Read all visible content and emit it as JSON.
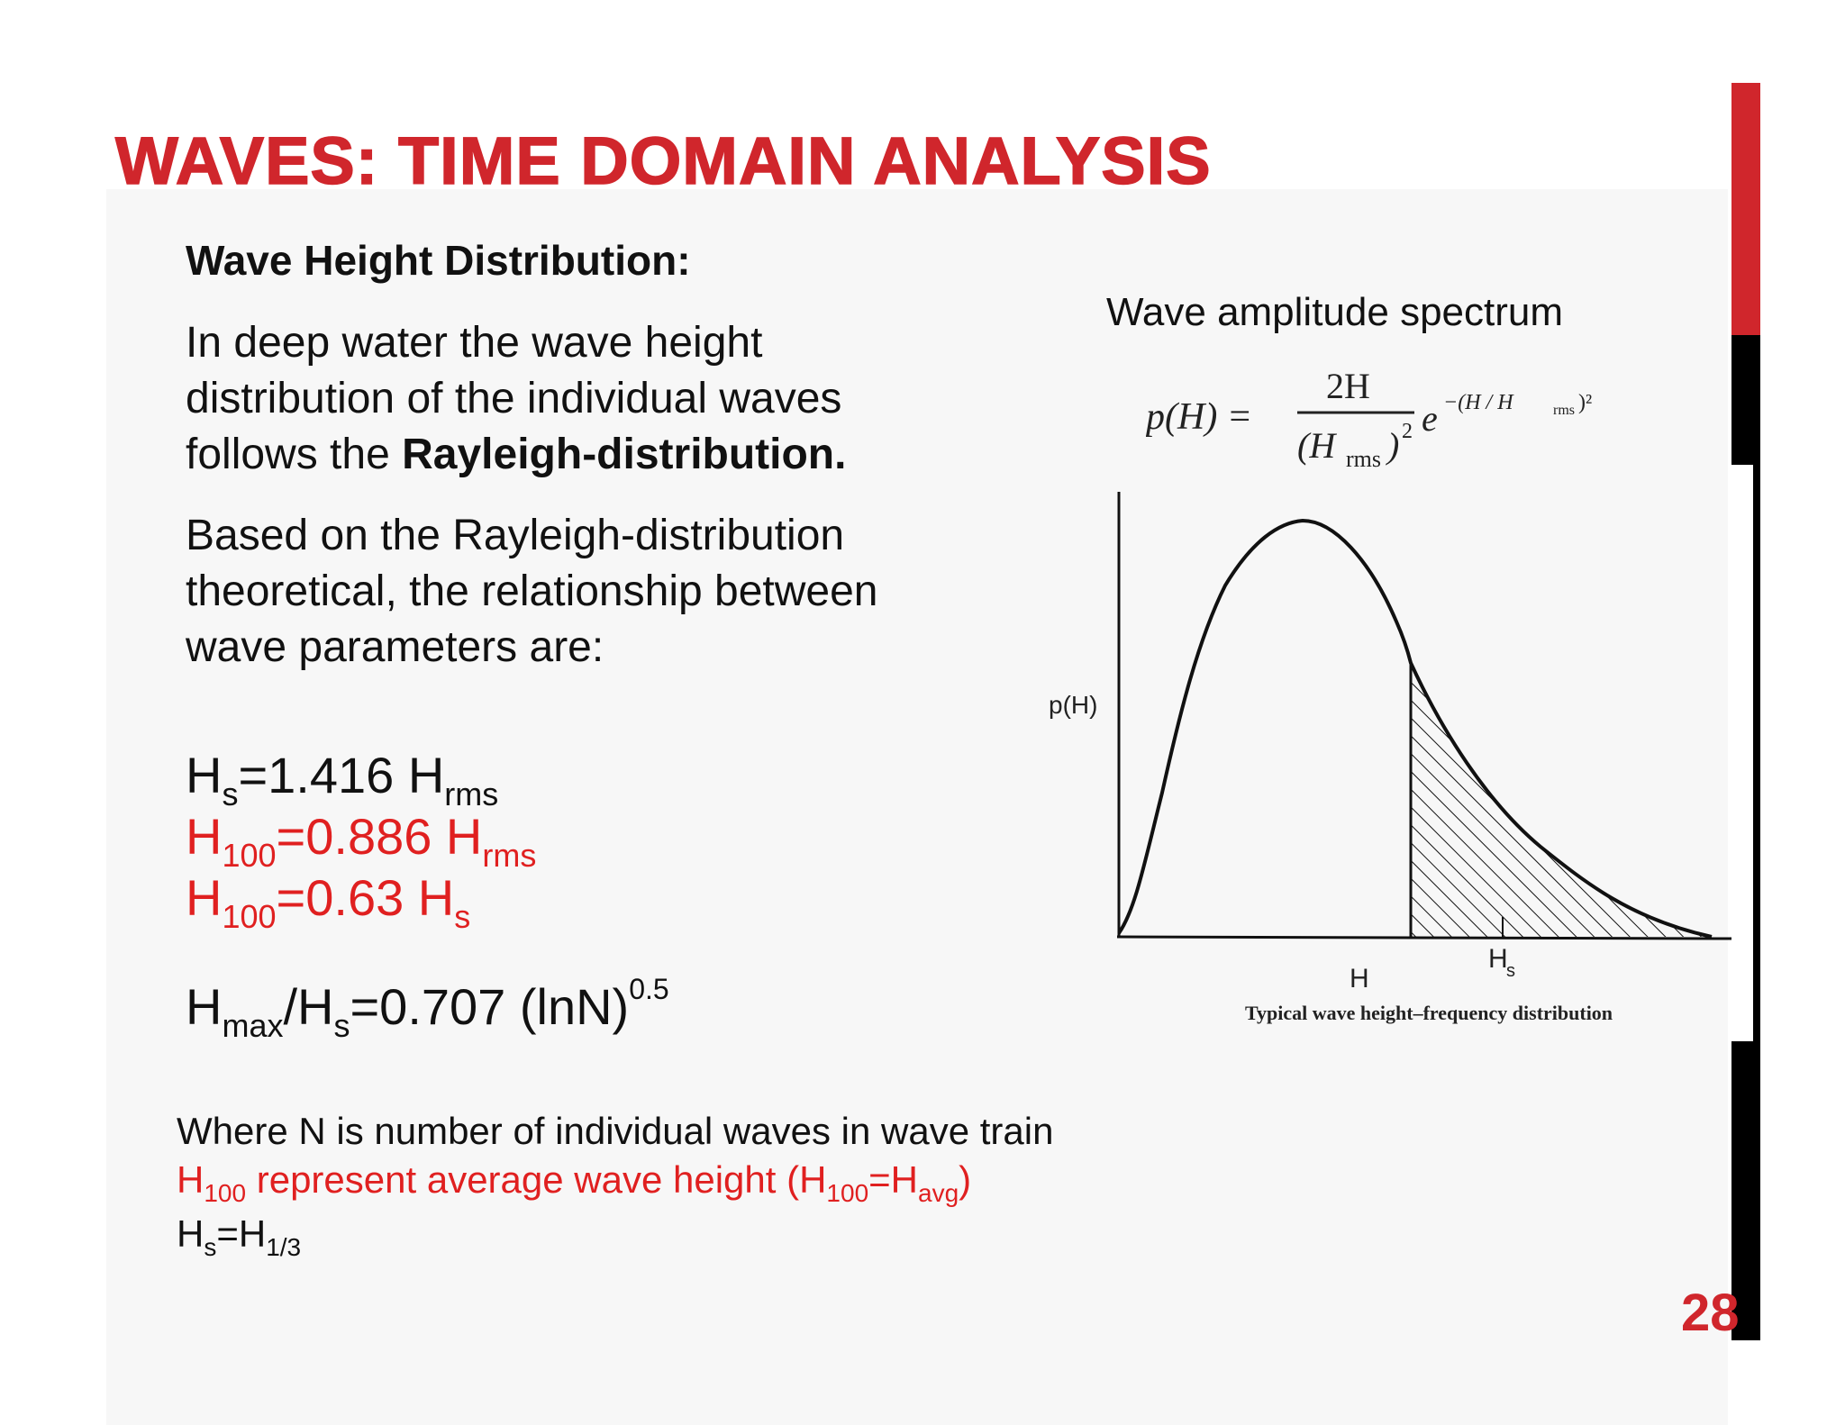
{
  "slide": {
    "title": "WAVES: TIME DOMAIN ANALYSIS",
    "heading": "Wave Height Distribution:",
    "para1_text": "In deep water the wave height distribution of the individual waves follows the ",
    "para1_bold": "Rayleigh-distribution.",
    "para2": "Based on the Rayleigh-distribution theoretical, the relationship between wave parameters are:",
    "page_number": "28"
  },
  "equations": [
    {
      "main": "H",
      "sub": "s",
      "rest": "=1.416 H",
      "sub2": "rms",
      "color": "#111111"
    },
    {
      "main": "H",
      "sub": "100",
      "rest": "=0.886 H",
      "sub2": "rms",
      "color": "#e02020"
    },
    {
      "main": "H",
      "sub": "100",
      "rest": "=0.63 H",
      "sub2": "s",
      "color": "#e02020"
    },
    {
      "main": "H",
      "sub": "max",
      "mid": "/H",
      "sub_mid": "s",
      "rest": "=0.707 (lnN)",
      "sup": "0.5",
      "color": "#111111"
    }
  ],
  "notes": {
    "line1": "Where N is number of individual waves in wave train",
    "line2_a": "H",
    "line2_sub": "100",
    "line2_b": " represent average wave height (H",
    "line2_sub2": "100",
    "line2_c": "=H",
    "line2_sub3": "avg",
    "line2_d": ")",
    "line3_a": "H",
    "line3_sub": "s",
    "line3_b": "=H",
    "line3_sub2": "1/3"
  },
  "figure": {
    "spectrum_title": "Wave amplitude spectrum",
    "formula": {
      "lhs": "p(H) =",
      "numerator": "2H",
      "denominator_a": "(H",
      "denominator_sub": "rms",
      "denominator_b": ")",
      "denominator_sup": "2",
      "exp_base": "e",
      "exponent": "−(H / H",
      "exponent_sub": "rms",
      "exponent_end": ")²"
    },
    "y_label": "p(H)",
    "x_label_h": "H",
    "x_label_hs": "H",
    "x_label_hs_sub": "s",
    "caption": "Typical wave height–frequency distribution"
  },
  "colors": {
    "accent_red": "#d0262c",
    "equation_red": "#e02020",
    "text": "#111111"
  }
}
